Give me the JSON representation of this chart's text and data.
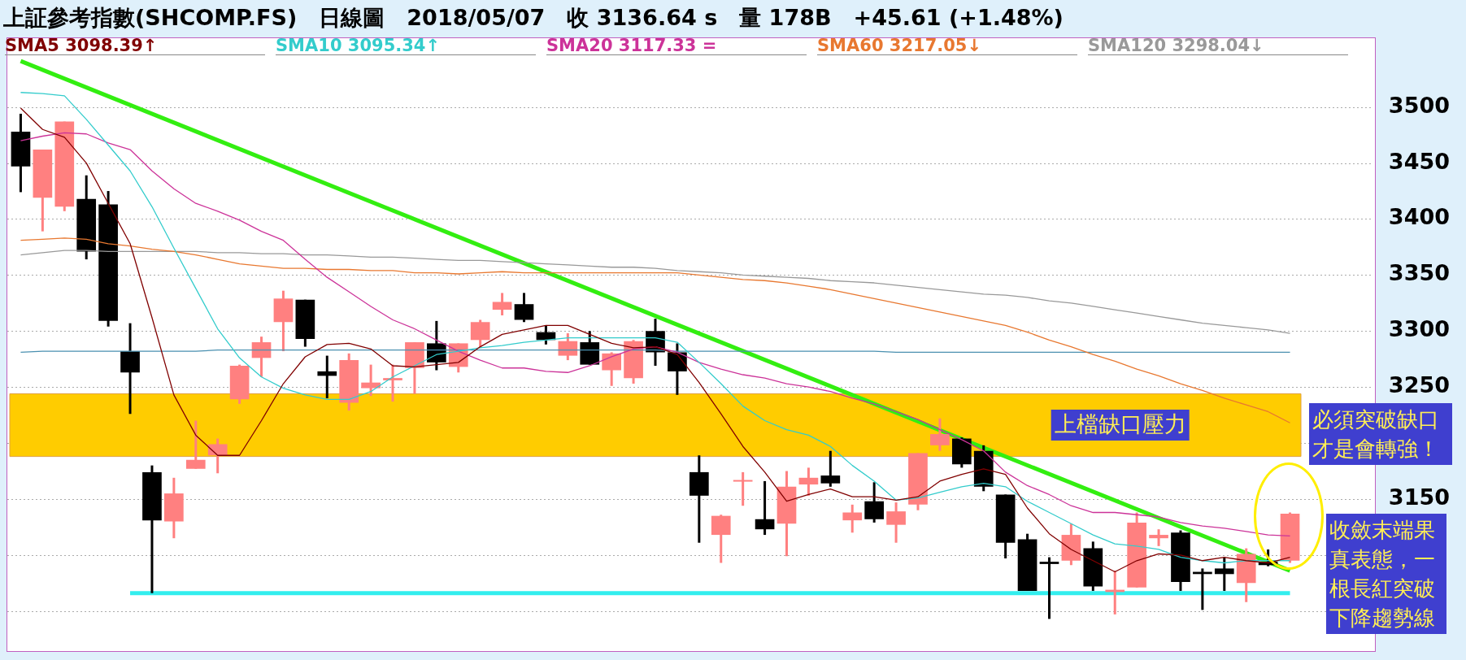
{
  "chart_data": {
    "type": "candlestick",
    "title": "上証參考指數(SHCOMP.FS)　日線圖　2018/05/07　收 3136.64 s　量 178B　+45.61 (+1.48%)",
    "categories": [
      null,
      null,
      null,
      null,
      null,
      null,
      null,
      null,
      null,
      null,
      null,
      null,
      null,
      null,
      null,
      null,
      null,
      null,
      null,
      null,
      null,
      null,
      null,
      null,
      null,
      null,
      null,
      null,
      null,
      null,
      null,
      null,
      null,
      null,
      null,
      null,
      null,
      null,
      null,
      null,
      null,
      null,
      null,
      null,
      null,
      null,
      null,
      null,
      null,
      null,
      null,
      null,
      null,
      null,
      null,
      null,
      null,
      null,
      null
    ],
    "ohlc": [
      [
        3478,
        3494,
        3424,
        3447
      ],
      [
        3419,
        3462,
        3389,
        3462
      ],
      [
        3411,
        3487,
        3407,
        3487
      ],
      [
        3418,
        3439,
        3364,
        3371
      ],
      [
        3413,
        3425,
        3304,
        3309
      ],
      [
        3282,
        3307,
        3226,
        3263
      ],
      [
        3174,
        3180,
        3066,
        3131
      ],
      [
        3130,
        3169,
        3115,
        3155
      ],
      [
        3177,
        3220,
        3177,
        3185
      ],
      [
        3189,
        3204,
        3173,
        3199
      ],
      [
        3239,
        3270,
        3235,
        3269
      ],
      [
        3276,
        3295,
        3259,
        3290
      ],
      [
        3308,
        3336,
        3282,
        3329
      ],
      [
        3328,
        3328,
        3286,
        3293
      ],
      [
        3264,
        3278,
        3240,
        3260
      ],
      [
        3236,
        3280,
        3229,
        3274
      ],
      [
        3249,
        3270,
        3242,
        3254
      ],
      [
        3256,
        3270,
        3237,
        3258
      ],
      [
        3267,
        3290,
        3244,
        3290
      ],
      [
        3289,
        3309,
        3265,
        3272
      ],
      [
        3268,
        3289,
        3263,
        3289
      ],
      [
        3292,
        3310,
        3285,
        3308
      ],
      [
        3319,
        3334,
        3314,
        3326
      ],
      [
        3324,
        3334,
        3308,
        3310
      ],
      [
        3299,
        3305,
        3288,
        3292
      ],
      [
        3278,
        3298,
        3274,
        3291
      ],
      [
        3290,
        3300,
        3270,
        3270
      ],
      [
        3265,
        3281,
        3251,
        3280
      ],
      [
        3258,
        3292,
        3253,
        3291
      ],
      [
        3300,
        3311,
        3269,
        3281
      ],
      [
        3281,
        3289,
        3243,
        3264
      ],
      [
        3174,
        3189,
        3111,
        3153
      ],
      [
        3118,
        3136,
        3093,
        3135
      ],
      [
        3166,
        3174,
        3144,
        3167
      ],
      [
        3132,
        3166,
        3118,
        3123
      ],
      [
        3128,
        3175,
        3099,
        3161
      ],
      [
        3163,
        3178,
        3153,
        3169
      ],
      [
        3171,
        3193,
        3161,
        3164
      ],
      [
        3131,
        3145,
        3120,
        3138
      ],
      [
        3148,
        3165,
        3129,
        3132
      ],
      [
        3127,
        3147,
        3111,
        3139
      ],
      [
        3145,
        3191,
        3140,
        3191
      ],
      [
        3198,
        3222,
        3193,
        3208
      ],
      [
        3204,
        3205,
        3178,
        3181
      ],
      [
        3193,
        3198,
        3157,
        3161
      ],
      [
        3154,
        3154,
        3097,
        3111
      ],
      [
        3114,
        3119,
        3068,
        3068
      ],
      [
        3094,
        3098,
        3043,
        3092
      ],
      [
        3095,
        3128,
        3091,
        3118
      ],
      [
        3106,
        3112,
        3068,
        3072
      ],
      [
        3067,
        3086,
        3047,
        3069
      ],
      [
        3071,
        3138,
        3071,
        3129
      ],
      [
        3115,
        3123,
        3108,
        3118
      ],
      [
        3120,
        3122,
        3068,
        3076
      ],
      [
        3085,
        3088,
        3051,
        3083
      ],
      [
        3088,
        3098,
        3068,
        3083
      ],
      [
        3075,
        3106,
        3058,
        3101
      ],
      [
        3094,
        3105,
        3090,
        3091
      ],
      [
        3095,
        3138,
        3093,
        3137
      ]
    ],
    "colors": [
      "#000000",
      "#ff8080",
      "#ff8080",
      "#000000",
      "#000000",
      "#000000",
      "#000000",
      "#ff8080",
      "#ff8080",
      "#ff8080",
      "#ff8080",
      "#ff8080",
      "#ff8080",
      "#000000",
      "#000000",
      "#ff8080",
      "#ff8080",
      "#ff8080",
      "#ff8080",
      "#000000",
      "#ff8080",
      "#ff8080",
      "#ff8080",
      "#000000",
      "#000000",
      "#ff8080",
      "#000000",
      "#ff8080",
      "#ff8080",
      "#000000",
      "#000000",
      "#000000",
      "#ff8080",
      "#ff8080",
      "#000000",
      "#ff8080",
      "#ff8080",
      "#000000",
      "#ff8080",
      "#000000",
      "#ff8080",
      "#ff8080",
      "#ff8080",
      "#000000",
      "#000000",
      "#000000",
      "#000000",
      "#000000",
      "#ff8080",
      "#000000",
      "#ff8080",
      "#ff8080",
      "#ff8080",
      "#000000",
      "#000000",
      "#000000",
      "#ff8080",
      "#000000",
      "#ff8080"
    ],
    "series": [
      {
        "name": "SMA5 3098.39↑",
        "type": "line",
        "color": "#800000",
        "values": [
          3499,
          3480,
          3473,
          3450,
          3414,
          3378,
          3312,
          3243,
          3207,
          3189,
          3189,
          3220,
          3253,
          3277,
          3288,
          3289,
          3284,
          3269,
          3268,
          3270,
          3272,
          3286,
          3297,
          3301,
          3305,
          3305,
          3297,
          3289,
          3285,
          3286,
          3279,
          3254,
          3226,
          3197,
          3174,
          3148,
          3154,
          3159,
          3152,
          3152,
          3149,
          3152,
          3166,
          3172,
          3177,
          3172,
          3142,
          3119,
          3105,
          3095,
          3085,
          3095,
          3101,
          3100,
          3095,
          3098,
          3095,
          3093,
          3098
        ]
      },
      {
        "name": "SMA10 3095.34↑",
        "type": "line",
        "color": "#33cccc",
        "values": [
          3513,
          3512,
          3510,
          3489,
          3466,
          3443,
          3411,
          3374,
          3338,
          3302,
          3276,
          3259,
          3249,
          3243,
          3239,
          3239,
          3246,
          3259,
          3269,
          3279,
          3282,
          3285,
          3287,
          3290,
          3292,
          3294,
          3294,
          3294,
          3294,
          3294,
          3290,
          3272,
          3253,
          3233,
          3220,
          3212,
          3207,
          3197,
          3180,
          3166,
          3149,
          3151,
          3156,
          3161,
          3164,
          3161,
          3148,
          3138,
          3128,
          3118,
          3110,
          3108,
          3105,
          3098,
          3095,
          3093,
          3095,
          3095,
          3095
        ]
      },
      {
        "name": "SMA20 3117.33 =",
        "type": "line",
        "color": "#cc3399",
        "values": [
          3470,
          3474,
          3477,
          3476,
          3468,
          3462,
          3443,
          3427,
          3414,
          3407,
          3399,
          3389,
          3381,
          3364,
          3348,
          3335,
          3322,
          3310,
          3302,
          3292,
          3282,
          3274,
          3267,
          3267,
          3264,
          3263,
          3269,
          3277,
          3284,
          3286,
          3281,
          3272,
          3266,
          3261,
          3258,
          3253,
          3250,
          3246,
          3240,
          3235,
          3228,
          3221,
          3212,
          3203,
          3193,
          3174,
          3162,
          3154,
          3144,
          3138,
          3138,
          3136,
          3134,
          3129,
          3126,
          3124,
          3121,
          3118,
          3117
        ]
      },
      {
        "name": "SMA60 3217.05↓",
        "type": "line",
        "color": "#e87830",
        "values": [
          3381,
          3382,
          3383,
          3382,
          3378,
          3376,
          3373,
          3371,
          3368,
          3364,
          3360,
          3358,
          3356,
          3356,
          3355,
          3355,
          3354,
          3354,
          3352,
          3352,
          3351,
          3352,
          3353,
          3352,
          3352,
          3352,
          3352,
          3352,
          3352,
          3352,
          3352,
          3350,
          3348,
          3346,
          3345,
          3343,
          3340,
          3337,
          3333,
          3329,
          3325,
          3321,
          3317,
          3313,
          3309,
          3305,
          3299,
          3292,
          3286,
          3279,
          3273,
          3266,
          3260,
          3253,
          3247,
          3240,
          3234,
          3228,
          3218
        ]
      },
      {
        "name": "SMA120 3298.04↓",
        "type": "line",
        "color": "#999999",
        "values": [
          3368,
          3370,
          3372,
          3372,
          3371,
          3371,
          3371,
          3371,
          3371,
          3370,
          3370,
          3369,
          3369,
          3368,
          3368,
          3367,
          3366,
          3366,
          3365,
          3364,
          3363,
          3363,
          3362,
          3361,
          3360,
          3359,
          3358,
          3357,
          3357,
          3356,
          3354,
          3353,
          3352,
          3350,
          3349,
          3348,
          3347,
          3345,
          3344,
          3343,
          3341,
          3339,
          3337,
          3335,
          3333,
          3332,
          3330,
          3327,
          3325,
          3322,
          3319,
          3316,
          3313,
          3310,
          3307,
          3305,
          3303,
          3301,
          3298
        ]
      },
      {
        "type": "line",
        "color": "#4a90b0",
        "values": [
          3281,
          3282,
          3282,
          3282,
          3282,
          3282,
          3282,
          3282,
          3282,
          3283,
          3283,
          3283,
          3283,
          3283,
          3283,
          3283,
          3283,
          3283,
          3283,
          3283,
          3283,
          3283,
          3283,
          3283,
          3283,
          3283,
          3283,
          3283,
          3283,
          3283,
          3282,
          3282,
          3282,
          3282,
          3282,
          3282,
          3282,
          3282,
          3282,
          3282,
          3281,
          3281,
          3281,
          3281,
          3281,
          3281,
          3281,
          3281,
          3281,
          3281,
          3281,
          3281,
          3281,
          3281,
          3281,
          3281,
          3281,
          3281,
          3281
        ]
      },
      {
        "type": "line",
        "color": "#33eeee",
        "values": [
          null,
          null,
          null,
          null,
          null,
          3066,
          3066,
          3066,
          3066,
          3066,
          3066,
          3066,
          3066,
          3066,
          3066,
          3066,
          3066,
          3066,
          3066,
          3066,
          3066,
          3066,
          3066,
          3066,
          3066,
          3066,
          3066,
          3066,
          3066,
          3066,
          3066,
          3066,
          3066,
          3066,
          3066,
          3066,
          3066,
          3066,
          3066,
          3066,
          3066,
          3066,
          3066,
          3066,
          3066,
          3066,
          3066,
          3066,
          3066,
          3066,
          3066,
          3066,
          3066,
          3066,
          3066,
          3066,
          3066,
          3066,
          3066
        ]
      },
      {
        "type": "line",
        "color": "#33ee11",
        "values": [
          3541,
          null,
          null,
          null,
          null,
          null,
          null,
          null,
          null,
          null,
          null,
          null,
          null,
          null,
          null,
          null,
          null,
          null,
          null,
          null,
          null,
          null,
          null,
          null,
          null,
          null,
          null,
          null,
          null,
          null,
          null,
          null,
          null,
          null,
          null,
          null,
          null,
          null,
          null,
          null,
          null,
          null,
          null,
          null,
          null,
          null,
          null,
          null,
          null,
          null,
          null,
          null,
          null,
          null,
          null,
          null,
          null,
          null,
          3086
        ]
      }
    ],
    "ylim": [
      3015,
      3560
    ],
    "yticks": [
      {
        "value": 3050,
        "label": null
      },
      {
        "value": 3100,
        "label": null
      },
      3150,
      {
        "value": 3200,
        "label": null
      },
      3250,
      3300,
      3350,
      3400,
      3450,
      3500
    ],
    "grid": "y",
    "legend": "top",
    "tick_labels": "y",
    "bands": [
      {
        "axis": "y",
        "from": 3188,
        "to": 3244,
        "label": "上檔缺口壓力",
        "color": "#ffcc00"
      }
    ],
    "annotations": [
      "必須突破缺口才是會轉強！",
      "收斂末端果真表態，一根長紅突破下降趨勢線"
    ]
  }
}
